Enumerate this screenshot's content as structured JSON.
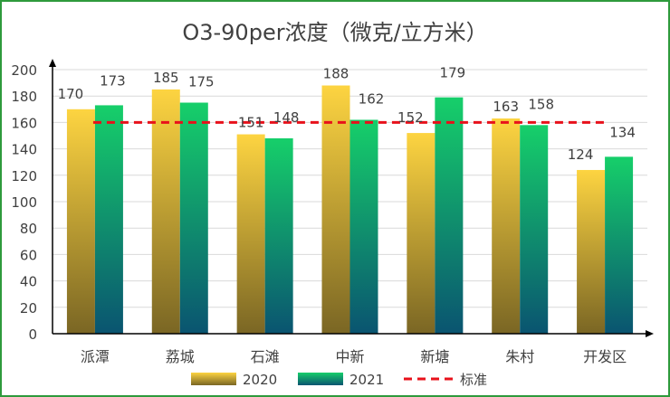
{
  "chart_data": {
    "type": "bar",
    "title": "O3-90per浓度（微克/立方米）",
    "categories": [
      "派潭",
      "荔城",
      "石滩",
      "中新",
      "新塘",
      "朱村",
      "开发区"
    ],
    "series": [
      {
        "name": "2020",
        "values": [
          170,
          185,
          151,
          188,
          152,
          163,
          124
        ]
      },
      {
        "name": "2021",
        "values": [
          173,
          175,
          148,
          162,
          179,
          158,
          134
        ]
      }
    ],
    "reference_line": {
      "name": "标准",
      "value": 160,
      "style": "dashed",
      "color": "#e8111b"
    },
    "ylim": [
      0,
      200
    ],
    "yticks": [
      0,
      20,
      40,
      60,
      80,
      100,
      120,
      140,
      160,
      180,
      200
    ],
    "xlabel": "",
    "ylabel": "",
    "grid": true,
    "legend_position": "bottom",
    "colors": {
      "series_2020_top": "#fdd441",
      "series_2020_bottom": "#7a6624",
      "series_2021_top": "#16cf6a",
      "series_2021_bottom": "#0a5470",
      "frame": "#2e9a3c"
    }
  }
}
